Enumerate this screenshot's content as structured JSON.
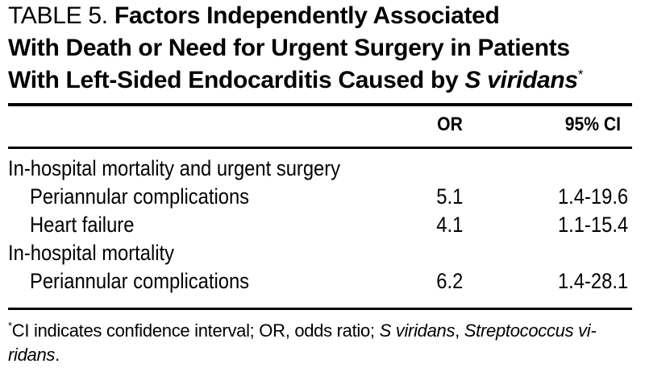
{
  "page": {
    "background_color": "#ffffff",
    "text_color": "#000000"
  },
  "title": {
    "table_label": "TABLE 5.",
    "line1_bold": "Factors Independently Associated",
    "line2": "With Death or Need for Urgent Surgery in Patients",
    "line3_pre": "With Left-Sided Endocarditis Caused by ",
    "line3_species": "S viridans",
    "footnote_marker": "*"
  },
  "table": {
    "headers": {
      "or": "OR",
      "ci": "95% CI"
    },
    "rows": [
      {
        "label": "In-hospital mortality and urgent surgery",
        "indent": false,
        "or": "",
        "ci": ""
      },
      {
        "label": "Periannular complications",
        "indent": true,
        "or": "5.1",
        "ci": "1.4-19.6"
      },
      {
        "label": "Heart failure",
        "indent": true,
        "or": "4.1",
        "ci": "1.1-15.4"
      },
      {
        "label": "In-hospital mortality",
        "indent": false,
        "or": "",
        "ci": ""
      },
      {
        "label": "Periannular complications",
        "indent": true,
        "or": "6.2",
        "ci": "1.4-28.1"
      }
    ]
  },
  "footnote": {
    "marker": "*",
    "line1_text": "CI indicates confidence interval; OR, odds ratio; ",
    "line1_italic1": "S viridans",
    "line1_sep": ", ",
    "line1_italic2": "Streptococcus vi-",
    "line2_italic": "ridans",
    "line2_end": "."
  }
}
